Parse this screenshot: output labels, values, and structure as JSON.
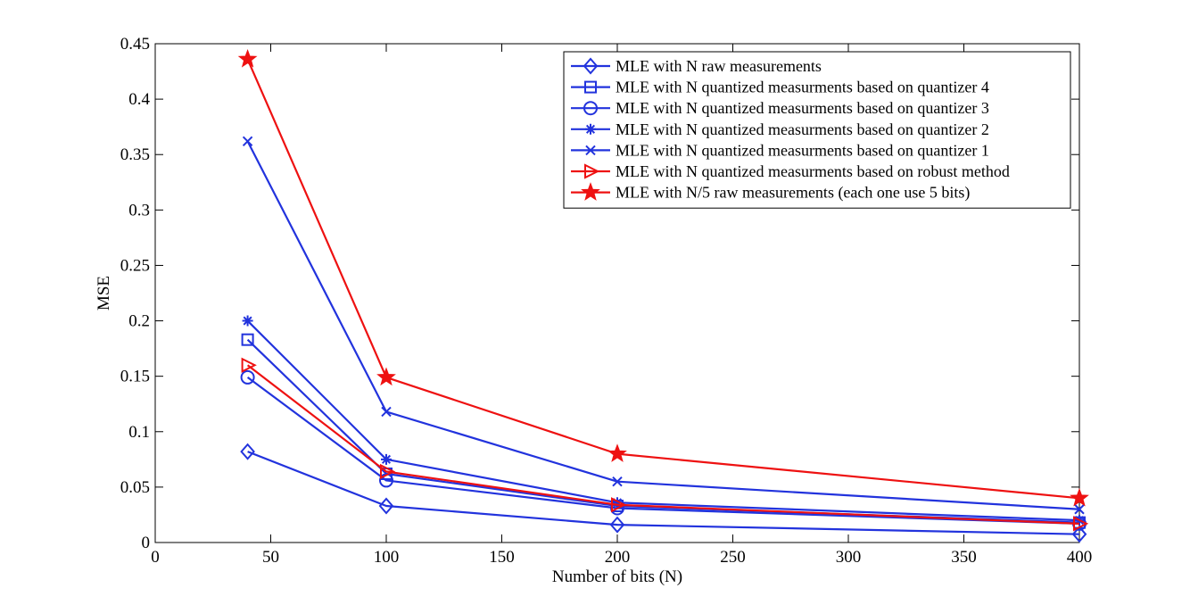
{
  "chart_data": {
    "type": "line",
    "title": "",
    "xlabel": "Number of bits (N)",
    "ylabel": "MSE",
    "xlim": [
      0,
      400
    ],
    "ylim": [
      0,
      0.45
    ],
    "xticks": [
      0,
      50,
      100,
      150,
      200,
      250,
      300,
      350,
      400
    ],
    "yticks": [
      0,
      0.05,
      0.1,
      0.15,
      0.2,
      0.25,
      0.3,
      0.35,
      0.4,
      0.45
    ],
    "xtick_labels": [
      "0",
      "50",
      "100",
      "150",
      "200",
      "250",
      "300",
      "350",
      "400"
    ],
    "ytick_labels": [
      "0",
      "0.05",
      "0.1",
      "0.15",
      "0.2",
      "0.25",
      "0.3",
      "0.35",
      "0.4",
      "0.45"
    ],
    "grid": false,
    "legend_position": "top-right",
    "x": [
      40,
      100,
      200,
      400
    ],
    "series": [
      {
        "name": "MLE with N raw measurements",
        "values": [
          0.082,
          0.033,
          0.016,
          0.0075
        ],
        "color": "#2233dd",
        "marker": "diamond"
      },
      {
        "name": "MLE with N quantized measurments based on quantizer 4",
        "values": [
          0.183,
          0.062,
          0.033,
          0.018
        ],
        "color": "#2233dd",
        "marker": "square"
      },
      {
        "name": "MLE with N quantized measurments based on quantizer 3",
        "values": [
          0.149,
          0.056,
          0.031,
          0.017
        ],
        "color": "#2233dd",
        "marker": "circle"
      },
      {
        "name": "MLE with N quantized measurments based on quantizer 2",
        "values": [
          0.2,
          0.075,
          0.036,
          0.02
        ],
        "color": "#2233dd",
        "marker": "asterisk"
      },
      {
        "name": "MLE with N quantized measurments based on quantizer 1",
        "values": [
          0.362,
          0.118,
          0.055,
          0.03
        ],
        "color": "#2233dd",
        "marker": "x"
      },
      {
        "name": "MLE with N quantized measurments based on robust method",
        "values": [
          0.16,
          0.064,
          0.034,
          0.017
        ],
        "color": "#ee1111",
        "marker": "triangle-right"
      },
      {
        "name": "MLE with N/5 raw measurements (each one use 5 bits)",
        "values": [
          0.436,
          0.149,
          0.08,
          0.04
        ],
        "color": "#ee1111",
        "marker": "star"
      }
    ]
  }
}
